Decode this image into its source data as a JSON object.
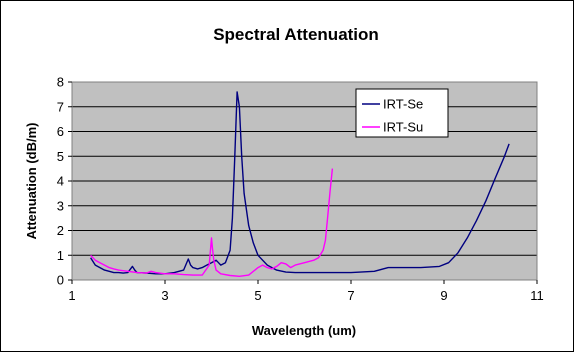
{
  "chart_data": {
    "type": "line",
    "title": "Spectral Attenuation",
    "xlabel": "Wavelength (um)",
    "ylabel": "Attenuation (dB/m)",
    "xlim": [
      1,
      11
    ],
    "ylim": [
      0,
      8
    ],
    "xticks": [
      "1",
      "3",
      "5",
      "7",
      "9",
      "11"
    ],
    "yticks": [
      "0",
      "1",
      "2",
      "3",
      "4",
      "5",
      "6",
      "7",
      "8"
    ],
    "plot_background": "#c0c0c0",
    "grid": "horizontal",
    "legend_position": "top-right",
    "series": [
      {
        "name": "IRT-Se",
        "color": "#000080",
        "x": [
          1.4,
          1.5,
          1.6,
          1.7,
          1.8,
          1.9,
          2.0,
          2.1,
          2.2,
          2.3,
          2.35,
          2.4,
          2.6,
          2.8,
          3.0,
          3.2,
          3.4,
          3.5,
          3.55,
          3.6,
          3.7,
          3.8,
          3.9,
          4.0,
          4.1,
          4.15,
          4.2,
          4.3,
          4.4,
          4.45,
          4.5,
          4.55,
          4.6,
          4.65,
          4.7,
          4.8,
          4.9,
          5.0,
          5.2,
          5.4,
          5.6,
          5.8,
          6.0,
          6.5,
          7.0,
          7.5,
          7.8,
          8.5,
          8.9,
          9.1,
          9.3,
          9.5,
          9.7,
          9.9,
          10.1,
          10.3,
          10.4
        ],
        "values": [
          0.9,
          0.6,
          0.5,
          0.4,
          0.35,
          0.3,
          0.3,
          0.28,
          0.3,
          0.55,
          0.4,
          0.3,
          0.28,
          0.25,
          0.25,
          0.3,
          0.4,
          0.85,
          0.6,
          0.5,
          0.45,
          0.5,
          0.6,
          0.7,
          0.8,
          0.7,
          0.6,
          0.7,
          1.2,
          2.5,
          5.0,
          7.6,
          7.0,
          5.0,
          3.5,
          2.2,
          1.5,
          1.0,
          0.6,
          0.4,
          0.32,
          0.3,
          0.3,
          0.3,
          0.3,
          0.35,
          0.5,
          0.5,
          0.55,
          0.7,
          1.1,
          1.7,
          2.4,
          3.2,
          4.1,
          5.0,
          5.5
        ]
      },
      {
        "name": "IRT-Su",
        "color": "#ff00ff",
        "x": [
          1.4,
          1.5,
          1.6,
          1.7,
          1.8,
          1.9,
          2.0,
          2.2,
          2.4,
          2.6,
          2.7,
          2.8,
          3.0,
          3.2,
          3.4,
          3.6,
          3.8,
          3.95,
          4.0,
          4.02,
          4.05,
          4.1,
          4.2,
          4.4,
          4.6,
          4.8,
          5.0,
          5.1,
          5.2,
          5.3,
          5.4,
          5.5,
          5.6,
          5.7,
          5.8,
          6.0,
          6.2,
          6.3,
          6.4,
          6.45,
          6.5,
          6.55,
          6.6
        ],
        "values": [
          1.0,
          0.8,
          0.7,
          0.6,
          0.5,
          0.45,
          0.4,
          0.35,
          0.3,
          0.28,
          0.35,
          0.3,
          0.25,
          0.25,
          0.22,
          0.2,
          0.2,
          0.6,
          1.7,
          1.3,
          0.8,
          0.4,
          0.25,
          0.18,
          0.15,
          0.2,
          0.5,
          0.6,
          0.5,
          0.45,
          0.55,
          0.7,
          0.65,
          0.5,
          0.6,
          0.7,
          0.8,
          0.9,
          1.2,
          1.6,
          2.6,
          3.6,
          4.5
        ]
      }
    ]
  }
}
